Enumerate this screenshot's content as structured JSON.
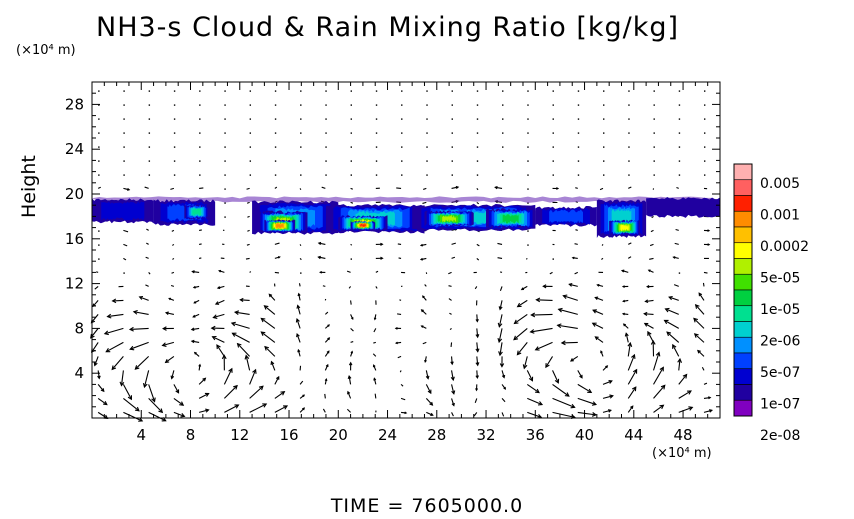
{
  "title": "NH3-s Cloud & Rain Mixing Ratio [kg/kg]",
  "y_unit_label": "(×10⁴ m)",
  "x_unit_label": "(×10⁴ m)",
  "time_label": "TIME  =  7605000.0",
  "chart_data": {
    "type": "heatmap",
    "title": "NH3-s Cloud & Rain Mixing Ratio [kg/kg]",
    "xlabel": "",
    "ylabel": "Height",
    "xlim": [
      0,
      51
    ],
    "ylim": [
      0,
      30
    ],
    "x_ticks": [
      4,
      8,
      12,
      16,
      20,
      24,
      28,
      32,
      36,
      40,
      44,
      48
    ],
    "y_ticks": [
      4,
      8,
      12,
      16,
      20,
      24,
      28
    ],
    "x_tick_labels": [
      "4",
      "8",
      "12",
      "16",
      "20",
      "24",
      "28",
      "32",
      "36",
      "40",
      "44",
      "48"
    ],
    "y_tick_labels": [
      "4",
      "8",
      "12",
      "16",
      "20",
      "24",
      "28"
    ],
    "colorbar": {
      "labels": [
        "0.005",
        "0.001",
        "0.0002",
        "5e-05",
        "1e-05",
        "2e-06",
        "5e-07",
        "1e-07",
        "2e-08"
      ],
      "colors": [
        "#ffb0b0",
        "#ff6060",
        "#ff2000",
        "#ff8c00",
        "#ffc000",
        "#ffff00",
        "#b0f000",
        "#40e000",
        "#00d040",
        "#00e090",
        "#00d0d0",
        "#0090ff",
        "#0040ff",
        "#0000d0",
        "#2000a0",
        "#8000c0"
      ]
    },
    "cloud_layer": {
      "blobs": [
        {
          "x0": 0,
          "x1": 5,
          "y0": 17.5,
          "y1": 19.5,
          "level": 2
        },
        {
          "x0": 5,
          "x1": 10,
          "y0": 17.3,
          "y1": 19.4,
          "level": 3
        },
        {
          "x0": 7.5,
          "x1": 9.5,
          "y0": 17.8,
          "y1": 19.0,
          "level": 6
        },
        {
          "x0": 13,
          "x1": 20,
          "y0": 16.5,
          "y1": 19.3,
          "level": 4
        },
        {
          "x0": 13.5,
          "x1": 17.5,
          "y0": 16.6,
          "y1": 18.4,
          "level": 9
        },
        {
          "x0": 14,
          "x1": 16.5,
          "y0": 16.7,
          "y1": 17.6,
          "level": 12
        },
        {
          "x0": 19,
          "x1": 27,
          "y0": 16.6,
          "y1": 19.0,
          "level": 5
        },
        {
          "x0": 20,
          "x1": 24,
          "y0": 16.8,
          "y1": 18.0,
          "level": 10
        },
        {
          "x0": 21,
          "x1": 23,
          "y0": 16.9,
          "y1": 17.5,
          "level": 13
        },
        {
          "x0": 26,
          "x1": 36,
          "y0": 16.8,
          "y1": 19.0,
          "level": 5
        },
        {
          "x0": 27,
          "x1": 31,
          "y0": 17.2,
          "y1": 18.4,
          "level": 9
        },
        {
          "x0": 32,
          "x1": 36,
          "y0": 17.0,
          "y1": 18.6,
          "level": 7
        },
        {
          "x0": 36,
          "x1": 41,
          "y0": 17.2,
          "y1": 18.8,
          "level": 3
        },
        {
          "x0": 41,
          "x1": 45,
          "y0": 16.2,
          "y1": 19.4,
          "level": 5
        },
        {
          "x0": 42,
          "x1": 44.5,
          "y0": 16.4,
          "y1": 17.6,
          "level": 10
        },
        {
          "x0": 45,
          "x1": 51,
          "y0": 18.0,
          "y1": 19.6,
          "level": 1
        }
      ]
    },
    "wind_vectors": {
      "description_hidden": true,
      "circulation_cells": [
        {
          "cx": 8,
          "cy": 4,
          "strength": 1.0
        },
        {
          "cx": 40,
          "cy": 5,
          "strength": 1.0
        }
      ]
    },
    "grid": false,
    "legend_position": "right"
  }
}
